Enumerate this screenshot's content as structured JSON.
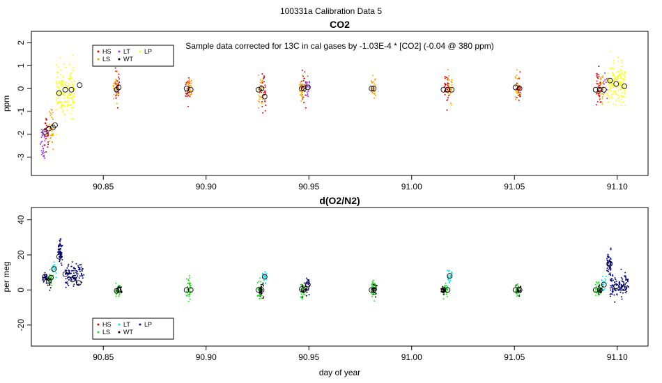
{
  "page_title": "100331a   Calibration Data 5",
  "chart_data": [
    {
      "type": "scatter",
      "title": "CO2",
      "annotation": "Sample data corrected for 13C in cal gases by -1.03E-4 * [CO2] (-0.04 @ 380 ppm)",
      "ylabel": "ppm",
      "xlim": [
        90.815,
        91.115
      ],
      "ylim": [
        -3.8,
        2.5
      ],
      "x_ticks": [
        90.85,
        90.9,
        90.95,
        91.0,
        91.05,
        91.1
      ],
      "x_tick_labels": [
        "90.85",
        "90.90",
        "90.95",
        "91.00",
        "91.05",
        "91.10"
      ],
      "y_ticks": [
        -3,
        -2,
        -1,
        0,
        1,
        2
      ],
      "y_tick_labels": [
        "-3",
        "-2",
        "-1",
        "0",
        "1",
        "2"
      ],
      "legend": {
        "position": "top-left",
        "entries": [
          {
            "label": "HS",
            "color": "#dd0000"
          },
          {
            "label": "LS",
            "color": "#ffa500"
          },
          {
            "label": "LT",
            "color": "#9b30ff"
          },
          {
            "label": "WT",
            "color": "#000000"
          },
          {
            "label": "LP",
            "color": "#ffff00"
          }
        ]
      },
      "clusters": [
        {
          "x": 90.8205,
          "y": -2.3,
          "spread": 0.7,
          "color": "#9b30ff",
          "n": 30
        },
        {
          "x": 90.8225,
          "y": -1.9,
          "spread": 0.6,
          "color": "#dd0000",
          "n": 30
        },
        {
          "x": 90.8245,
          "y": -1.7,
          "spread": 0.7,
          "color": "#ffa500",
          "n": 30
        },
        {
          "x": 90.8315,
          "y": -0.1,
          "spread": 0.9,
          "color": "#ffff00",
          "n": 160
        },
        {
          "x": 90.857,
          "y": 0.0,
          "spread": 0.55,
          "color": "#dd0000",
          "n": 30
        },
        {
          "x": 90.856,
          "y": 0.0,
          "spread": 0.45,
          "color": "#ffa500",
          "n": 25
        },
        {
          "x": 90.891,
          "y": 0.0,
          "spread": 0.45,
          "color": "#dd0000",
          "n": 25
        },
        {
          "x": 90.892,
          "y": 0.0,
          "spread": 0.4,
          "color": "#ffa500",
          "n": 25
        },
        {
          "x": 90.9265,
          "y": -0.2,
          "spread": 0.6,
          "color": "#ffa500",
          "n": 30
        },
        {
          "x": 90.928,
          "y": -0.2,
          "spread": 0.6,
          "color": "#dd0000",
          "n": 30
        },
        {
          "x": 90.9475,
          "y": 0.0,
          "spread": 0.55,
          "color": "#dd0000",
          "n": 25
        },
        {
          "x": 90.9465,
          "y": 0.0,
          "spread": 0.5,
          "color": "#ffa500",
          "n": 25
        },
        {
          "x": 90.9495,
          "y": 0.1,
          "spread": 0.6,
          "color": "#9b30ff",
          "n": 20
        },
        {
          "x": 90.9815,
          "y": 0.0,
          "spread": 0.45,
          "color": "#ffa500",
          "n": 30
        },
        {
          "x": 91.017,
          "y": 0.0,
          "spread": 0.55,
          "color": "#dd0000",
          "n": 35
        },
        {
          "x": 91.0185,
          "y": 0.0,
          "spread": 0.45,
          "color": "#ffa500",
          "n": 25
        },
        {
          "x": 91.0515,
          "y": 0.1,
          "spread": 0.5,
          "color": "#ffa500",
          "n": 25
        },
        {
          "x": 91.052,
          "y": 0.0,
          "spread": 0.5,
          "color": "#dd0000",
          "n": 20
        },
        {
          "x": 91.091,
          "y": 0.0,
          "spread": 0.65,
          "color": "#dd0000",
          "n": 35
        },
        {
          "x": 91.0925,
          "y": 0.0,
          "spread": 0.55,
          "color": "#ffa500",
          "n": 25
        },
        {
          "x": 91.0945,
          "y": 0.3,
          "spread": 0.5,
          "color": "#9b30ff",
          "n": 12
        },
        {
          "x": 91.0995,
          "y": 0.2,
          "spread": 0.75,
          "color": "#ffff00",
          "n": 150
        }
      ],
      "means": [
        {
          "x": 90.8215,
          "y": -1.9
        },
        {
          "x": 90.8235,
          "y": -1.75
        },
        {
          "x": 90.8255,
          "y": -1.7
        },
        {
          "x": 90.8265,
          "y": -1.6
        },
        {
          "x": 90.8285,
          "y": -0.2
        },
        {
          "x": 90.8315,
          "y": -0.05
        },
        {
          "x": 90.8345,
          "y": -0.05
        },
        {
          "x": 90.8385,
          "y": 0.15
        },
        {
          "x": 90.8565,
          "y": -0.05
        },
        {
          "x": 90.8575,
          "y": 0.05
        },
        {
          "x": 90.8905,
          "y": 0.0
        },
        {
          "x": 90.8925,
          "y": -0.05
        },
        {
          "x": 90.9255,
          "y": -0.05
        },
        {
          "x": 90.927,
          "y": 0.0
        },
        {
          "x": 90.9285,
          "y": -0.35
        },
        {
          "x": 90.9465,
          "y": 0.0
        },
        {
          "x": 90.9475,
          "y": 0.0
        },
        {
          "x": 90.9495,
          "y": 0.05
        },
        {
          "x": 90.9805,
          "y": 0.0
        },
        {
          "x": 90.9815,
          "y": 0.0
        },
        {
          "x": 91.0155,
          "y": -0.05
        },
        {
          "x": 91.0175,
          "y": -0.05
        },
        {
          "x": 91.0195,
          "y": -0.05
        },
        {
          "x": 91.0505,
          "y": 0.05
        },
        {
          "x": 91.0525,
          "y": 0.0
        },
        {
          "x": 91.0895,
          "y": -0.05
        },
        {
          "x": 91.0915,
          "y": -0.05
        },
        {
          "x": 91.0935,
          "y": -0.05
        },
        {
          "x": 91.0965,
          "y": 0.35
        },
        {
          "x": 91.0995,
          "y": 0.2
        },
        {
          "x": 91.1035,
          "y": 0.1
        }
      ]
    },
    {
      "type": "scatter",
      "title": "d(O2/N2)",
      "ylabel": "per meg",
      "xlabel": "day of year",
      "xlim": [
        90.815,
        91.115
      ],
      "ylim": [
        -32,
        47
      ],
      "x_ticks": [
        90.85,
        90.9,
        90.95,
        91.0,
        91.05,
        91.1
      ],
      "x_tick_labels": [
        "90.85",
        "90.90",
        "90.95",
        "91.00",
        "91.05",
        "91.10"
      ],
      "y_ticks": [
        -20,
        0,
        20,
        40
      ],
      "y_tick_labels": [
        "-20",
        "0",
        "20",
        "40"
      ],
      "legend": {
        "position": "bottom-left",
        "entries": [
          {
            "label": "HS",
            "color": "#dd0000"
          },
          {
            "label": "LS",
            "color": "#22dd22"
          },
          {
            "label": "LT",
            "color": "#00e5ee"
          },
          {
            "label": "WT",
            "color": "#000000"
          },
          {
            "label": "LP",
            "color": "#000080"
          }
        ]
      },
      "clusters": [
        {
          "x": 90.8215,
          "y": 7,
          "spread": 3,
          "color": "#000080",
          "n": 25
        },
        {
          "x": 90.8235,
          "y": 5,
          "spread": 3,
          "color": "#000000",
          "n": 20
        },
        {
          "x": 90.8245,
          "y": 7,
          "spread": 4,
          "color": "#22dd22",
          "n": 20
        },
        {
          "x": 90.826,
          "y": 12,
          "spread": 4,
          "color": "#00e5ee",
          "n": 20
        },
        {
          "x": 90.829,
          "y": 22,
          "spread": 5,
          "color": "#000080",
          "n": 60
        },
        {
          "x": 90.836,
          "y": 8,
          "spread": 6,
          "color": "#000080",
          "n": 110
        },
        {
          "x": 90.857,
          "y": 0,
          "spread": 3,
          "color": "#22dd22",
          "n": 30
        },
        {
          "x": 90.858,
          "y": 0,
          "spread": 2,
          "color": "#000000",
          "n": 20
        },
        {
          "x": 90.8915,
          "y": 0,
          "spread": 6,
          "color": "#22dd22",
          "n": 40
        },
        {
          "x": 90.926,
          "y": 0,
          "spread": 5,
          "color": "#22dd22",
          "n": 35
        },
        {
          "x": 90.927,
          "y": 0,
          "spread": 3,
          "color": "#000000",
          "n": 20
        },
        {
          "x": 90.9285,
          "y": 7,
          "spread": 3,
          "color": "#00e5ee",
          "n": 20
        },
        {
          "x": 90.947,
          "y": 0,
          "spread": 4,
          "color": "#22dd22",
          "n": 30
        },
        {
          "x": 90.948,
          "y": 0,
          "spread": 3,
          "color": "#000000",
          "n": 20
        },
        {
          "x": 90.9495,
          "y": 3,
          "spread": 4,
          "color": "#000080",
          "n": 20
        },
        {
          "x": 90.9815,
          "y": 0,
          "spread": 4,
          "color": "#22dd22",
          "n": 40
        },
        {
          "x": 90.982,
          "y": 0,
          "spread": 3,
          "color": "#000000",
          "n": 20
        },
        {
          "x": 91.0165,
          "y": 0,
          "spread": 3,
          "color": "#22dd22",
          "n": 35
        },
        {
          "x": 91.0155,
          "y": 0,
          "spread": 2,
          "color": "#000000",
          "n": 20
        },
        {
          "x": 91.0185,
          "y": 8,
          "spread": 3,
          "color": "#00e5ee",
          "n": 25
        },
        {
          "x": 91.0515,
          "y": 0,
          "spread": 3,
          "color": "#22dd22",
          "n": 35
        },
        {
          "x": 91.052,
          "y": 0,
          "spread": 2,
          "color": "#000000",
          "n": 20
        },
        {
          "x": 91.0905,
          "y": 0,
          "spread": 4,
          "color": "#22dd22",
          "n": 30
        },
        {
          "x": 91.092,
          "y": 0,
          "spread": 3,
          "color": "#000000",
          "n": 20
        },
        {
          "x": 91.0935,
          "y": 3,
          "spread": 4,
          "color": "#00e5ee",
          "n": 20
        },
        {
          "x": 91.096,
          "y": 16,
          "spread": 5,
          "color": "#000080",
          "n": 50
        },
        {
          "x": 91.101,
          "y": 2,
          "spread": 6,
          "color": "#000080",
          "n": 110
        }
      ],
      "means": [
        {
          "x": 90.8215,
          "y": 7.5
        },
        {
          "x": 90.8235,
          "y": 5
        },
        {
          "x": 90.8245,
          "y": 7
        },
        {
          "x": 90.826,
          "y": 12
        },
        {
          "x": 90.8285,
          "y": 19
        },
        {
          "x": 90.8315,
          "y": 9
        },
        {
          "x": 90.835,
          "y": 6
        },
        {
          "x": 90.838,
          "y": 4
        },
        {
          "x": 90.8565,
          "y": -0.5
        },
        {
          "x": 90.8575,
          "y": 0
        },
        {
          "x": 90.8905,
          "y": 0
        },
        {
          "x": 90.8925,
          "y": 0
        },
        {
          "x": 90.9255,
          "y": 0
        },
        {
          "x": 90.927,
          "y": 0
        },
        {
          "x": 90.9285,
          "y": 7.5
        },
        {
          "x": 90.9465,
          "y": 0.5
        },
        {
          "x": 90.9475,
          "y": 0
        },
        {
          "x": 90.9495,
          "y": 3
        },
        {
          "x": 90.9805,
          "y": 0
        },
        {
          "x": 90.9815,
          "y": 0
        },
        {
          "x": 91.0155,
          "y": 0
        },
        {
          "x": 91.0175,
          "y": 0
        },
        {
          "x": 91.0185,
          "y": 8
        },
        {
          "x": 91.0505,
          "y": 0
        },
        {
          "x": 91.0525,
          "y": 0
        },
        {
          "x": 91.0895,
          "y": 0
        },
        {
          "x": 91.0915,
          "y": 0
        },
        {
          "x": 91.0935,
          "y": 3
        },
        {
          "x": 91.0965,
          "y": 15
        },
        {
          "x": 91.0995,
          "y": 2
        },
        {
          "x": 91.1035,
          "y": 1
        }
      ]
    }
  ]
}
